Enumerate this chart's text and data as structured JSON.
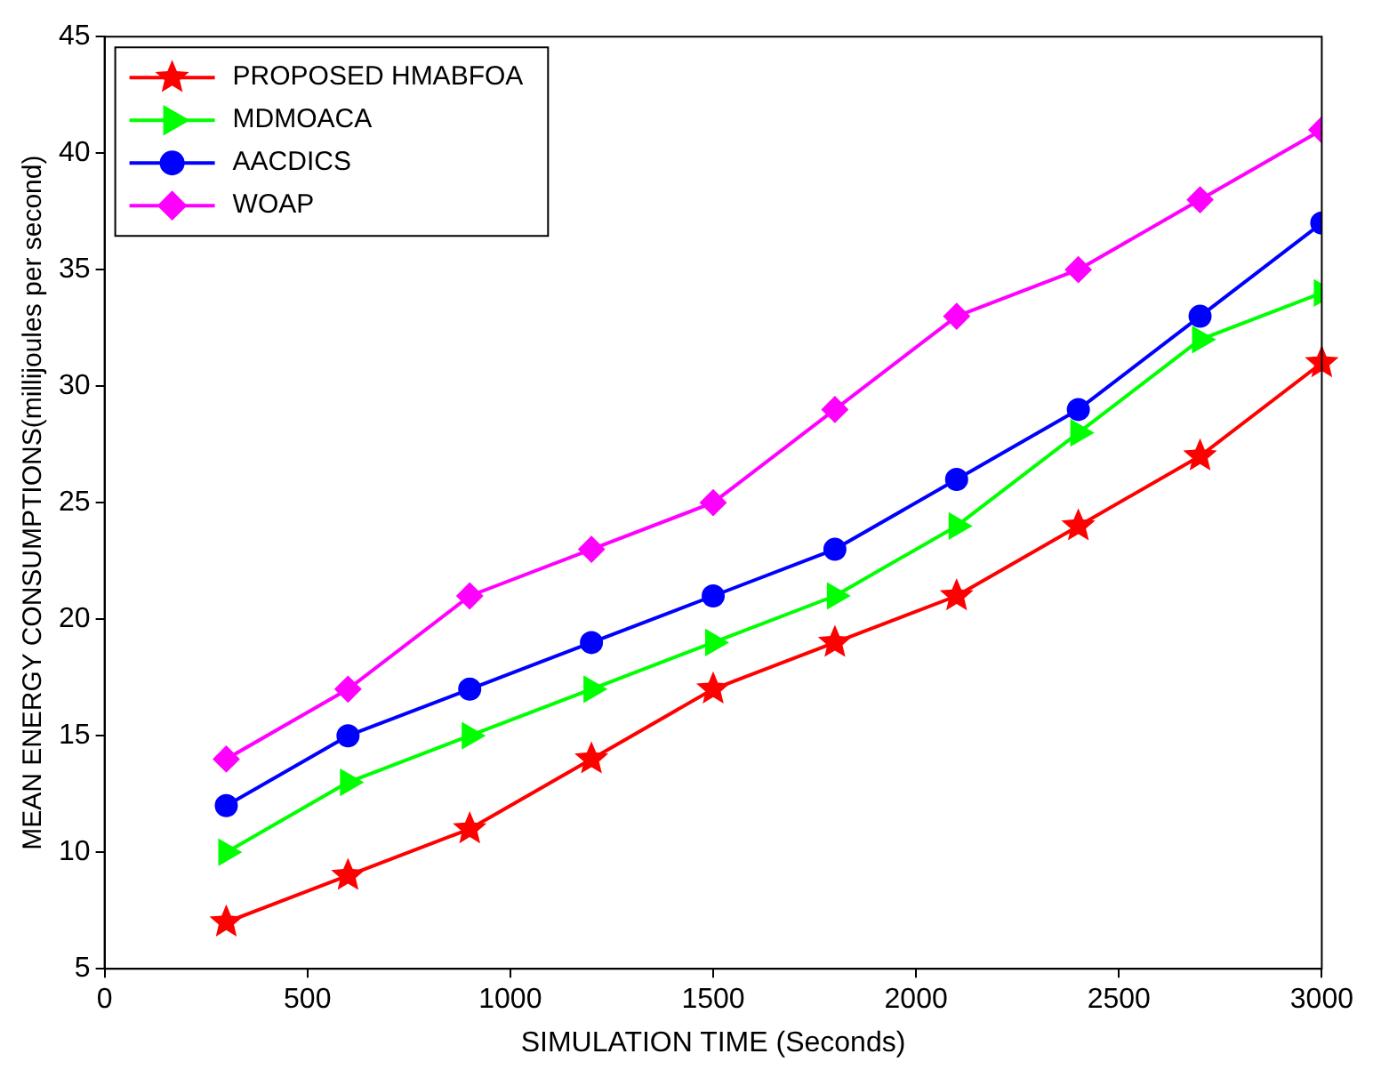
{
  "chart_data": {
    "type": "line",
    "xlabel": "SIMULATION TIME (Seconds)",
    "ylabel": "MEAN ENERGY CONSUMPTIONS(millijoules per second)",
    "x": [
      300,
      600,
      900,
      1200,
      1500,
      1800,
      2100,
      2400,
      2700,
      3000
    ],
    "series": [
      {
        "name": "PROPOSED HMABFOA",
        "color": "#ff0000",
        "marker": "star",
        "values": [
          7,
          9,
          11,
          14,
          17,
          19,
          21,
          24,
          27,
          31
        ]
      },
      {
        "name": "MDMOACA",
        "color": "#00ff00",
        "marker": "triangle",
        "values": [
          10,
          13,
          15,
          17,
          19,
          21,
          24,
          28,
          32,
          34
        ]
      },
      {
        "name": "AACDICS",
        "color": "#0000ff",
        "marker": "circle",
        "values": [
          12,
          15,
          17,
          19,
          21,
          23,
          26,
          29,
          33,
          37
        ]
      },
      {
        "name": "WOAP",
        "color": "#ff00ff",
        "marker": "diamond",
        "values": [
          14,
          17,
          21,
          23,
          25,
          29,
          33,
          35,
          38,
          41
        ]
      }
    ],
    "xlim": [
      0,
      3000
    ],
    "xticks": [
      0,
      500,
      1000,
      1500,
      2000,
      2500,
      3000
    ],
    "ylim": [
      5,
      45
    ],
    "yticks": [
      5,
      10,
      15,
      20,
      25,
      30,
      35,
      40,
      45
    ],
    "grid": false,
    "legend": "top left",
    "line_style": "solid"
  }
}
